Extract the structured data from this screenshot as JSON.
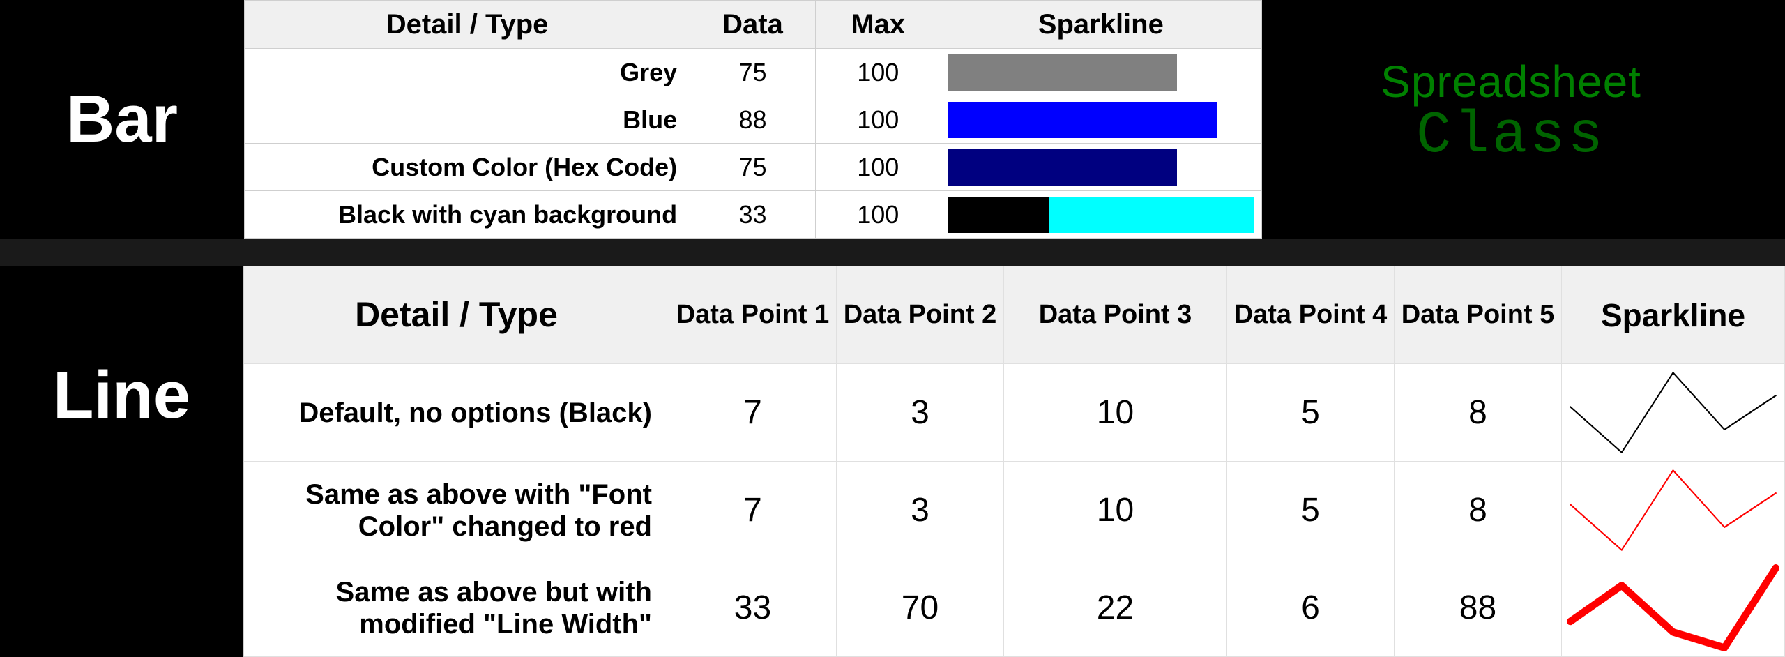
{
  "section_labels": {
    "bar": "Bar",
    "line": "Line"
  },
  "logo": {
    "line1": "Spreadsheet",
    "line2": "Class",
    "color1": "#008000",
    "color2": "#006400"
  },
  "bar_table": {
    "header": {
      "detail": "Detail / Type",
      "data": "Data",
      "max": "Max",
      "spark": "Sparkline"
    },
    "header_bg": "#f0f0f0",
    "row_bg": "#ffffff",
    "border_color": "#cfcfcf",
    "rows": [
      {
        "label": "Grey",
        "data": 75,
        "max": 100,
        "bar_color": "#808080",
        "cell_bg": "#ffffff"
      },
      {
        "label": "Blue",
        "data": 88,
        "max": 100,
        "bar_color": "#0000ff",
        "cell_bg": "#ffffff"
      },
      {
        "label": "Custom Color (Hex Code)",
        "data": 75,
        "max": 100,
        "bar_color": "#000080",
        "cell_bg": "#ffffff"
      },
      {
        "label": "Black with cyan background",
        "data": 33,
        "max": 100,
        "bar_color": "#000000",
        "cell_bg": "#00ffff"
      }
    ]
  },
  "line_table": {
    "header": {
      "detail": "Detail / Type",
      "dp1": "Data Point 1",
      "dp2": "Data Point 2",
      "dp3": "Data Point 3",
      "dp4": "Data Point 4",
      "dp5": "Data Point 5",
      "spark": "Sparkline"
    },
    "header_bg": "#f0f0f0",
    "row_bg": "#ffffff",
    "border_color": "#e0e0e0",
    "ylim": [
      0,
      100
    ],
    "rows": [
      {
        "label": "Default, no options (Black)",
        "points": [
          7,
          3,
          10,
          5,
          8
        ],
        "line_color": "#000000",
        "line_width": 2
      },
      {
        "label": "Same as above with \"Font Color\" changed to red",
        "points": [
          7,
          3,
          10,
          5,
          8
        ],
        "line_color": "#ff0000",
        "line_width": 2
      },
      {
        "label": "Same as above but with modified \"Line Width\"",
        "points": [
          33,
          70,
          22,
          6,
          88
        ],
        "line_color": "#ff0000",
        "line_width": 10
      }
    ]
  }
}
